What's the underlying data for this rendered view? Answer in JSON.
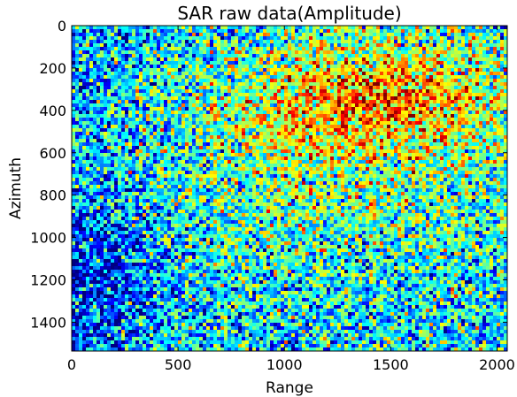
{
  "chart_data": {
    "type": "heatmap",
    "title": "SAR raw data(Amplitude)",
    "xlabel": "Range",
    "ylabel": "Azimuth",
    "xlim": [
      0,
      2048
    ],
    "ylim": [
      1536,
      0
    ],
    "x_ticks": [
      0,
      500,
      1000,
      1500,
      2000
    ],
    "y_ticks": [
      0,
      200,
      400,
      600,
      800,
      1000,
      1200,
      1400
    ],
    "colormap": "jet",
    "grid": false,
    "legend": "none",
    "intensity_regions": [
      {
        "range": [
          800,
          2048
        ],
        "azimuth": [
          100,
          550
        ],
        "level": "high"
      },
      {
        "range": [
          500,
          2048
        ],
        "azimuth": [
          550,
          1000
        ],
        "level": "medium"
      },
      {
        "range": [
          0,
          400
        ],
        "azimuth": [
          800,
          1536
        ],
        "level": "low"
      }
    ]
  }
}
